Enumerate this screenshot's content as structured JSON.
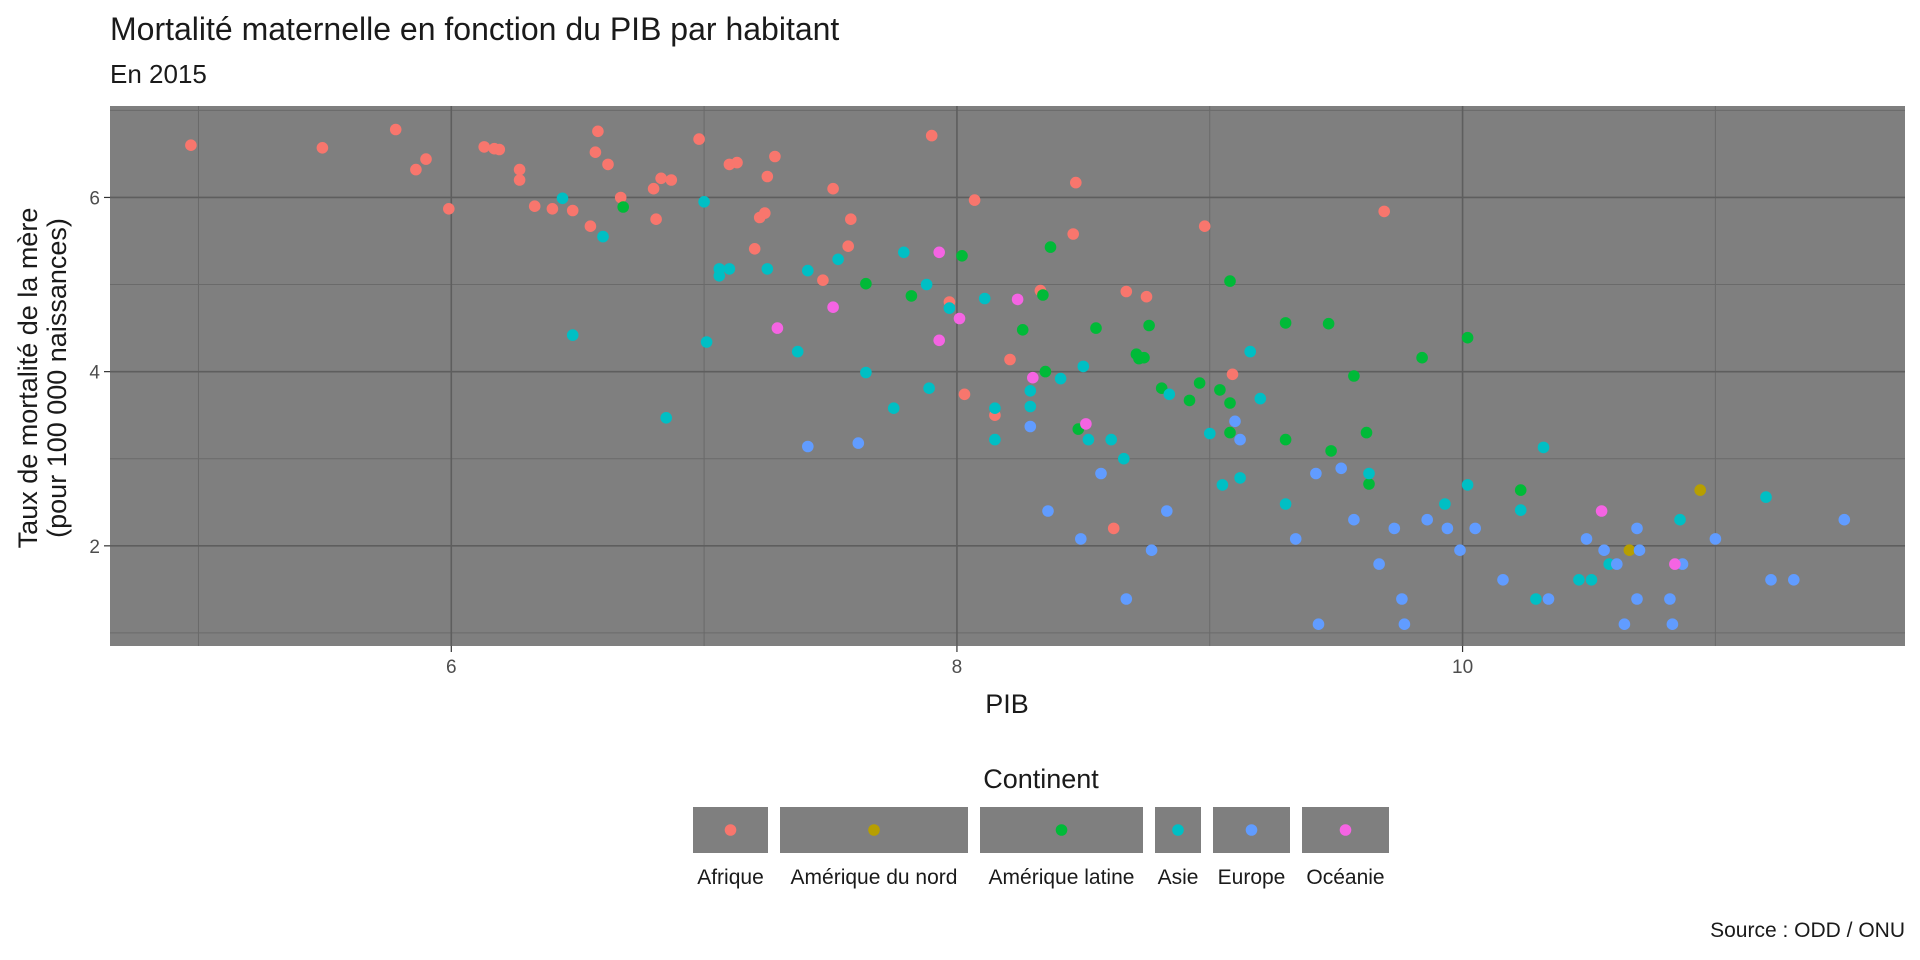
{
  "chart_data": {
    "type": "scatter",
    "title": "Mortalité maternelle en fonction du PIB par habitant",
    "subtitle": "En 2015",
    "xlabel": "PIB",
    "ylabel_line1": "Taux de mortalité de la mère",
    "ylabel_line2": "(pour 100 000 naissances)",
    "caption": "Source : ODD / ONU",
    "xlim": [
      4.65,
      11.75
    ],
    "ylim": [
      0.85,
      7.05
    ],
    "x_ticks": [
      6,
      8,
      10
    ],
    "y_ticks": [
      2,
      4,
      6
    ],
    "x_minor": [
      5,
      7,
      9,
      11
    ],
    "y_minor": [
      1,
      3,
      5,
      7
    ],
    "grid": true,
    "panel_color": "#7f7f7f",
    "legend": {
      "title": "Continent",
      "position": "bottom"
    },
    "series": [
      {
        "name": "Afrique",
        "color": "#F8766D",
        "points": [
          [
            4.97,
            6.6
          ],
          [
            5.49,
            6.57
          ],
          [
            5.78,
            6.78
          ],
          [
            5.86,
            6.32
          ],
          [
            5.9,
            6.44
          ],
          [
            5.99,
            5.87
          ],
          [
            6.13,
            6.58
          ],
          [
            6.17,
            6.56
          ],
          [
            6.19,
            6.55
          ],
          [
            6.27,
            6.32
          ],
          [
            6.27,
            6.2
          ],
          [
            6.33,
            5.9
          ],
          [
            6.4,
            5.87
          ],
          [
            6.48,
            5.85
          ],
          [
            6.55,
            5.67
          ],
          [
            6.57,
            6.52
          ],
          [
            6.58,
            6.76
          ],
          [
            6.62,
            6.38
          ],
          [
            6.67,
            6.0
          ],
          [
            6.8,
            6.1
          ],
          [
            6.81,
            5.75
          ],
          [
            6.83,
            6.22
          ],
          [
            6.87,
            6.2
          ],
          [
            6.98,
            6.67
          ],
          [
            7.1,
            6.38
          ],
          [
            7.13,
            6.4
          ],
          [
            7.2,
            5.41
          ],
          [
            7.22,
            5.77
          ],
          [
            7.24,
            5.82
          ],
          [
            7.25,
            6.24
          ],
          [
            7.28,
            6.47
          ],
          [
            7.47,
            5.05
          ],
          [
            7.51,
            6.1
          ],
          [
            7.57,
            5.44
          ],
          [
            7.58,
            5.75
          ],
          [
            7.9,
            6.71
          ],
          [
            7.97,
            4.8
          ],
          [
            8.03,
            3.74
          ],
          [
            8.07,
            5.97
          ],
          [
            8.21,
            4.14
          ],
          [
            8.15,
            3.5
          ],
          [
            8.33,
            4.93
          ],
          [
            8.46,
            5.58
          ],
          [
            8.47,
            6.17
          ],
          [
            8.62,
            2.2
          ],
          [
            8.67,
            4.92
          ],
          [
            8.75,
            4.86
          ],
          [
            8.98,
            5.67
          ],
          [
            9.09,
            3.97
          ],
          [
            9.69,
            5.84
          ]
        ]
      },
      {
        "name": "Amérique du nord",
        "color": "#B79F00",
        "points": [
          [
            10.66,
            1.95
          ],
          [
            10.94,
            2.64
          ]
        ]
      },
      {
        "name": "Amérique latine",
        "color": "#00BA38",
        "points": [
          [
            6.68,
            5.89
          ],
          [
            7.64,
            5.01
          ],
          [
            7.82,
            4.87
          ],
          [
            8.02,
            5.33
          ],
          [
            8.26,
            4.48
          ],
          [
            8.34,
            4.88
          ],
          [
            8.35,
            4.0
          ],
          [
            8.37,
            5.43
          ],
          [
            8.48,
            3.34
          ],
          [
            8.55,
            4.5
          ],
          [
            8.71,
            4.2
          ],
          [
            8.72,
            4.15
          ],
          [
            8.74,
            4.16
          ],
          [
            8.76,
            4.53
          ],
          [
            8.81,
            3.81
          ],
          [
            8.92,
            3.67
          ],
          [
            8.96,
            3.87
          ],
          [
            9.04,
            3.79
          ],
          [
            9.08,
            3.64
          ],
          [
            9.08,
            3.3
          ],
          [
            9.08,
            5.04
          ],
          [
            9.3,
            3.22
          ],
          [
            9.3,
            4.56
          ],
          [
            9.47,
            4.55
          ],
          [
            9.48,
            3.09
          ],
          [
            9.57,
            3.95
          ],
          [
            9.62,
            3.3
          ],
          [
            9.63,
            2.71
          ],
          [
            9.84,
            4.16
          ],
          [
            10.02,
            4.39
          ],
          [
            10.23,
            2.64
          ]
        ]
      },
      {
        "name": "Asie",
        "color": "#00BFC4",
        "points": [
          [
            6.44,
            5.99
          ],
          [
            6.48,
            4.42
          ],
          [
            6.6,
            5.55
          ],
          [
            6.85,
            3.47
          ],
          [
            7.0,
            5.95
          ],
          [
            7.01,
            4.34
          ],
          [
            7.06,
            5.1
          ],
          [
            7.06,
            5.18
          ],
          [
            7.1,
            5.18
          ],
          [
            7.25,
            5.18
          ],
          [
            7.37,
            4.23
          ],
          [
            7.41,
            5.16
          ],
          [
            7.53,
            5.29
          ],
          [
            7.64,
            3.99
          ],
          [
            7.75,
            3.58
          ],
          [
            7.79,
            5.37
          ],
          [
            7.88,
            5.0
          ],
          [
            7.89,
            3.81
          ],
          [
            7.97,
            4.73
          ],
          [
            8.11,
            4.84
          ],
          [
            8.15,
            3.58
          ],
          [
            8.15,
            3.22
          ],
          [
            8.29,
            3.78
          ],
          [
            8.29,
            3.6
          ],
          [
            8.41,
            3.92
          ],
          [
            8.5,
            4.06
          ],
          [
            8.52,
            3.22
          ],
          [
            8.61,
            3.22
          ],
          [
            8.66,
            3.0
          ],
          [
            8.84,
            3.74
          ],
          [
            9.0,
            3.29
          ],
          [
            9.05,
            2.7
          ],
          [
            9.12,
            2.78
          ],
          [
            9.16,
            4.23
          ],
          [
            9.2,
            3.69
          ],
          [
            9.3,
            2.48
          ],
          [
            9.63,
            2.83
          ],
          [
            9.93,
            2.48
          ],
          [
            10.02,
            2.7
          ],
          [
            10.23,
            2.41
          ],
          [
            10.29,
            1.39
          ],
          [
            10.32,
            3.13
          ],
          [
            10.46,
            1.61
          ],
          [
            10.51,
            1.61
          ],
          [
            10.58,
            1.79
          ],
          [
            10.86,
            2.3
          ],
          [
            11.2,
            2.56
          ]
        ]
      },
      {
        "name": "Europe",
        "color": "#619CFF",
        "points": [
          [
            7.41,
            3.14
          ],
          [
            7.61,
            3.18
          ],
          [
            8.29,
            3.37
          ],
          [
            8.36,
            2.4
          ],
          [
            8.49,
            2.08
          ],
          [
            8.57,
            2.83
          ],
          [
            8.67,
            1.39
          ],
          [
            8.77,
            1.95
          ],
          [
            8.83,
            2.4
          ],
          [
            9.1,
            3.43
          ],
          [
            9.12,
            3.22
          ],
          [
            9.34,
            2.08
          ],
          [
            9.42,
            2.83
          ],
          [
            9.43,
            1.1
          ],
          [
            9.52,
            2.89
          ],
          [
            9.57,
            2.3
          ],
          [
            9.67,
            1.79
          ],
          [
            9.73,
            2.2
          ],
          [
            9.76,
            1.39
          ],
          [
            9.77,
            1.1
          ],
          [
            9.86,
            2.3
          ],
          [
            9.94,
            2.2
          ],
          [
            9.99,
            1.95
          ],
          [
            10.05,
            2.2
          ],
          [
            10.16,
            1.61
          ],
          [
            10.34,
            1.39
          ],
          [
            10.49,
            2.08
          ],
          [
            10.56,
            1.95
          ],
          [
            10.61,
            1.79
          ],
          [
            10.64,
            1.1
          ],
          [
            10.69,
            1.39
          ],
          [
            10.69,
            2.2
          ],
          [
            10.7,
            1.95
          ],
          [
            10.82,
            1.39
          ],
          [
            10.83,
            1.1
          ],
          [
            10.87,
            1.79
          ],
          [
            11.0,
            2.08
          ],
          [
            11.22,
            1.61
          ],
          [
            11.31,
            1.61
          ],
          [
            11.51,
            2.3
          ]
        ]
      },
      {
        "name": "Océanie",
        "color": "#F564E3",
        "points": [
          [
            7.29,
            4.5
          ],
          [
            7.51,
            4.74
          ],
          [
            7.93,
            5.37
          ],
          [
            7.93,
            4.36
          ],
          [
            8.01,
            4.61
          ],
          [
            8.24,
            4.83
          ],
          [
            8.3,
            3.93
          ],
          [
            8.51,
            3.4
          ],
          [
            10.55,
            2.4
          ],
          [
            10.84,
            1.79
          ]
        ]
      }
    ]
  }
}
